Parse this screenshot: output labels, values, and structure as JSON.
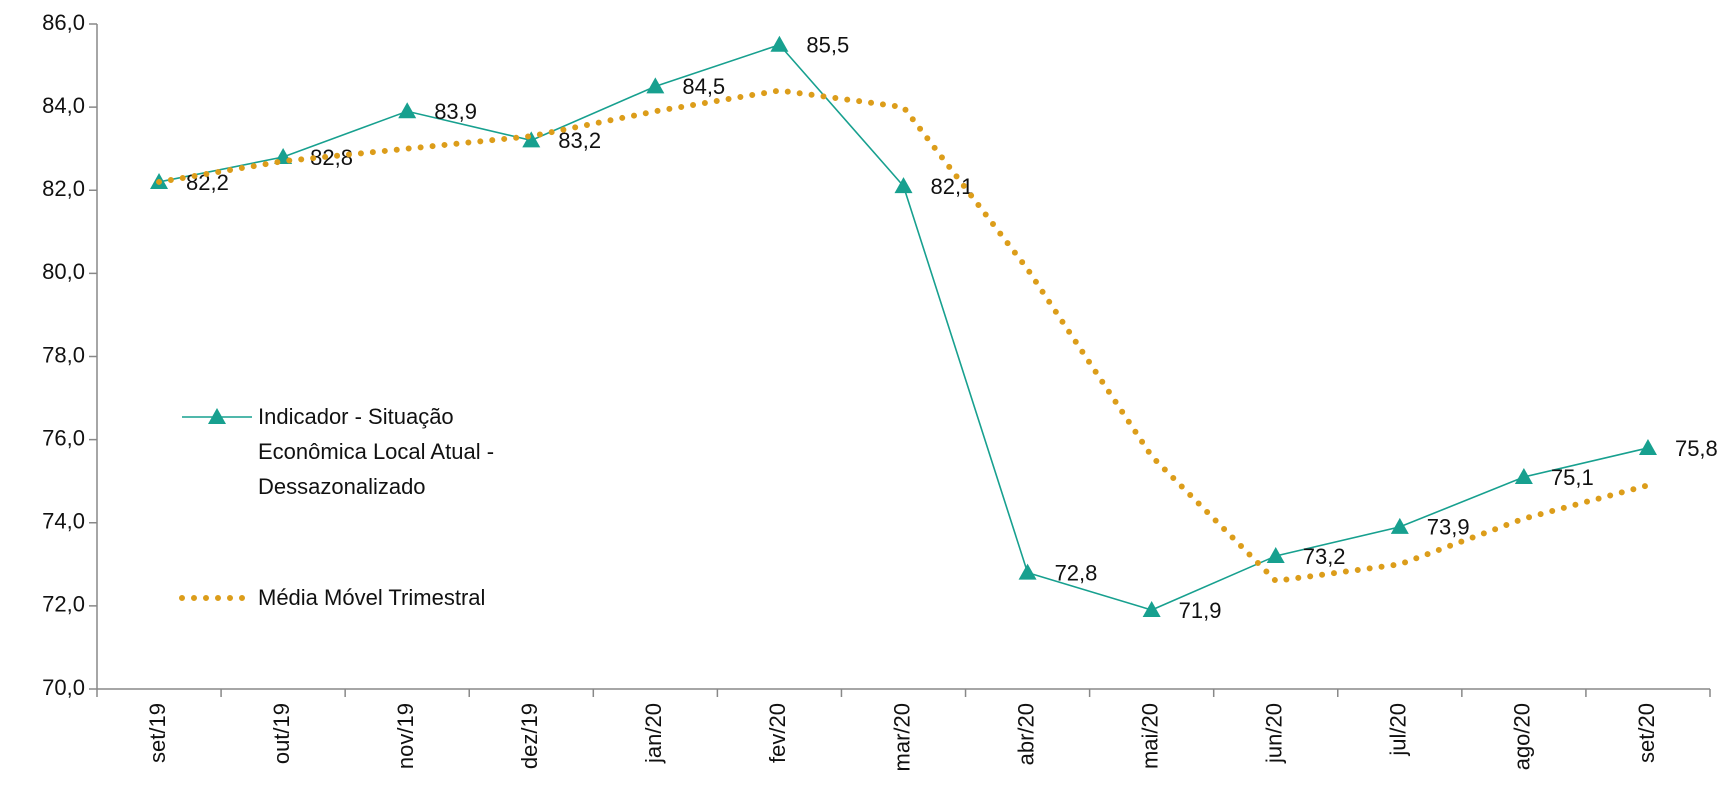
{
  "chart_data": {
    "type": "line",
    "categories": [
      "set/19",
      "out/19",
      "nov/19",
      "dez/19",
      "jan/20",
      "fev/20",
      "mar/20",
      "abr/20",
      "mai/20",
      "jun/20",
      "jul/20",
      "ago/20",
      "set/20"
    ],
    "series": [
      {
        "name": "Indicador - Situação Econômica Local Atual - Dessazonalizado",
        "color": "#17a08f",
        "style": "solid",
        "marker": "triangle",
        "values": [
          82.2,
          82.8,
          83.9,
          83.2,
          84.5,
          85.5,
          82.1,
          72.8,
          71.9,
          73.2,
          73.9,
          75.1,
          75.8
        ],
        "value_labels": [
          "82,2",
          "82,8",
          "83,9",
          "83,2",
          "84,5",
          "85,5",
          "82,1",
          "72,8",
          "71,9",
          "73,2",
          "73,9",
          "75,1",
          "75,8"
        ]
      },
      {
        "name": "Média Móvel Trimestral",
        "color": "#dc9d1a",
        "style": "dotted",
        "values": [
          82.2,
          82.7,
          83.0,
          83.3,
          83.9,
          84.4,
          84.0,
          80.1,
          75.6,
          72.6,
          73.0,
          74.1,
          74.9
        ]
      }
    ],
    "ylim": [
      70,
      86
    ],
    "yticks": [
      {
        "value": 70,
        "label": "70,0"
      },
      {
        "value": 72,
        "label": "72,0"
      },
      {
        "value": 74,
        "label": "74,0"
      },
      {
        "value": 76,
        "label": "76,0"
      },
      {
        "value": 78,
        "label": "78,0"
      },
      {
        "value": 80,
        "label": "80,0"
      },
      {
        "value": 82,
        "label": "82,0"
      },
      {
        "value": 84,
        "label": "84,0"
      },
      {
        "value": 86,
        "label": "86,0"
      }
    ],
    "legend": "left"
  }
}
